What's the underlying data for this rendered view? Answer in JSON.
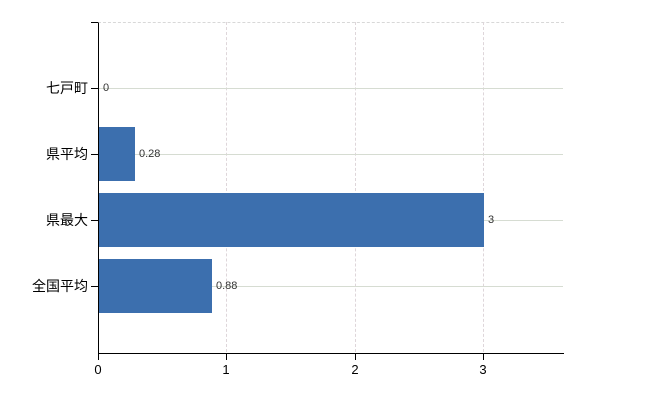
{
  "chart_data": {
    "type": "bar",
    "orientation": "horizontal",
    "title": "",
    "categories": [
      "七戸町",
      "県平均",
      "県最大",
      "全国平均"
    ],
    "values": [
      0,
      0.28,
      3,
      0.88
    ],
    "value_labels": [
      "0",
      "0.28",
      "3",
      "0.88"
    ],
    "x_tick_labels": [
      "0",
      "1",
      "2",
      "3"
    ],
    "x_tick_values": [
      0,
      1,
      2,
      3
    ],
    "xlim": [
      0,
      3.62
    ],
    "xlabel": "",
    "ylabel": "",
    "legend_position": "none",
    "grid": {
      "horizontal": true,
      "vertical": true,
      "horizontal_color": "#d6dcd2",
      "horizontal_style": "solid",
      "vertical_color": "#ded6da",
      "vertical_style": "dashed"
    },
    "colors": {
      "bar": "#3c6fae",
      "axis": "#000000",
      "top_border": "#d8d8d8",
      "category_label": "#000000",
      "value_label": "#333333",
      "background": "#ffffff"
    }
  }
}
